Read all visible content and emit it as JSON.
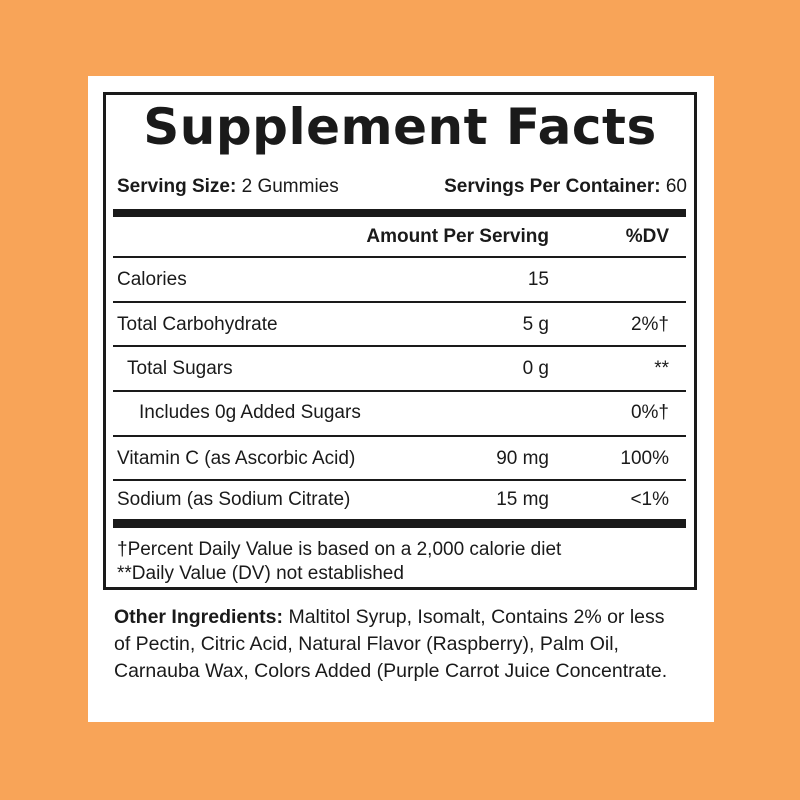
{
  "header": {
    "title": "Supplement Facts"
  },
  "serving": {
    "size_label": "Serving Size:",
    "size_value": "2 Gummies",
    "per_container_label": "Servings Per Container:",
    "per_container_value": "60"
  },
  "table": {
    "columns": [
      "Amount Per Serving",
      "%DV"
    ],
    "rows": [
      [
        "Calories",
        "15",
        ""
      ],
      [
        "Total Carbohydrate",
        "5 g",
        "2%†"
      ],
      [
        "Total Sugars",
        "0 g",
        "**"
      ],
      [
        "Includes 0g Added Sugars",
        "",
        "0%†"
      ],
      [
        "Vitamin C (as Ascorbic Acid)",
        "90 mg",
        "100%"
      ],
      [
        "Sodium (as Sodium Citrate)",
        "15 mg",
        "<1%"
      ]
    ]
  },
  "footnotes": [
    "†Percent Daily Value is based on a 2,000 calorie diet",
    "**Daily Value (DV) not established"
  ],
  "ingredients": {
    "label": "Other Ingredients:",
    "text": "Maltitol Syrup, Isomalt, Contains 2% or less of Pectin, Citric Acid, Natural Flavor (Raspberry), Palm Oil, Carnauba Wax, Colors Added (Purple Carrot Juice Concentrate."
  }
}
